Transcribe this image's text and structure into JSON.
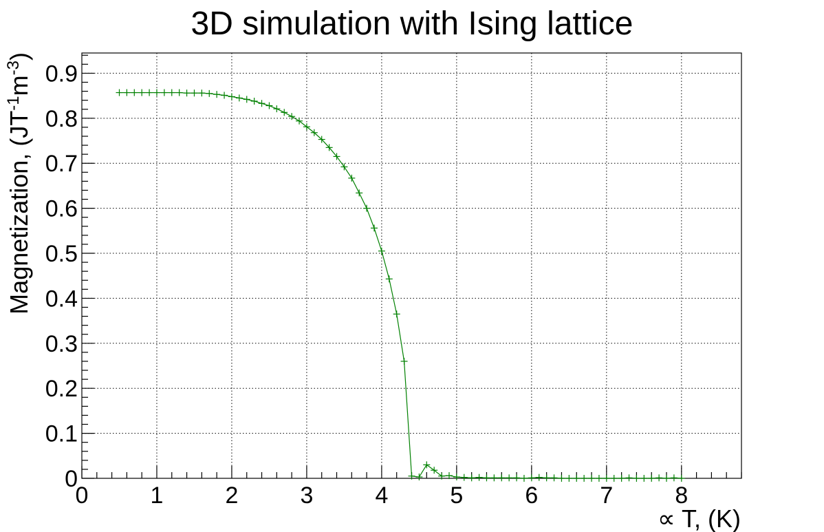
{
  "chart_data": {
    "type": "line",
    "title": "3D simulation with Ising lattice",
    "xlabel": "∝ T, (K)",
    "ylabel": {
      "main": "Magnetization, (JT",
      "sup1": "-1",
      "mid": "m",
      "sup2": "-3",
      "end": ")"
    },
    "xlim": [
      0,
      8.8
    ],
    "ylim": [
      0,
      0.945
    ],
    "xticks": [
      0,
      1,
      2,
      3,
      4,
      5,
      6,
      7,
      8
    ],
    "yticks": [
      0,
      0.1,
      0.2,
      0.3,
      0.4,
      0.5,
      0.6,
      0.7,
      0.8,
      0.9
    ],
    "xtick_labels": [
      "0",
      "1",
      "2",
      "3",
      "4",
      "5",
      "6",
      "7",
      "8"
    ],
    "ytick_labels": [
      "0",
      "0.1",
      "0.2",
      "0.3",
      "0.4",
      "0.5",
      "0.6",
      "0.7",
      "0.8",
      "0.9"
    ],
    "grid": true,
    "marker": "plus",
    "color": "#008000",
    "series": [
      {
        "x": [
          0.5,
          0.6,
          0.7,
          0.8,
          0.9,
          1.0,
          1.1,
          1.2,
          1.3,
          1.4,
          1.5,
          1.6,
          1.7,
          1.8,
          1.9,
          2.0,
          2.1,
          2.2,
          2.3,
          2.4,
          2.5,
          2.6,
          2.7,
          2.8,
          2.9,
          3.0,
          3.1,
          3.2,
          3.3,
          3.4,
          3.5,
          3.6,
          3.7,
          3.8,
          3.9,
          4.0,
          4.1,
          4.2,
          4.3,
          4.4,
          4.5,
          4.6,
          4.7,
          4.8,
          4.9,
          5.0,
          5.1,
          5.2,
          5.3,
          5.4,
          5.5,
          5.6,
          5.7,
          5.8,
          5.9,
          6.0,
          6.1,
          6.2,
          6.3,
          6.4,
          6.5,
          6.6,
          6.7,
          6.8,
          6.9,
          7.0,
          7.1,
          7.2,
          7.3,
          7.4,
          7.5,
          7.6,
          7.7,
          7.8,
          7.9,
          8.0
        ],
        "values": [
          0.857,
          0.857,
          0.857,
          0.857,
          0.857,
          0.857,
          0.857,
          0.857,
          0.857,
          0.856,
          0.856,
          0.856,
          0.855,
          0.853,
          0.851,
          0.848,
          0.845,
          0.842,
          0.838,
          0.833,
          0.828,
          0.821,
          0.813,
          0.804,
          0.794,
          0.781,
          0.768,
          0.753,
          0.735,
          0.715,
          0.692,
          0.667,
          0.634,
          0.6,
          0.556,
          0.505,
          0.443,
          0.365,
          0.26,
          0.005,
          0.003,
          0.03,
          0.018,
          0.005,
          0.006,
          0.003,
          0.002,
          0.001,
          0.002,
          0.001,
          0.001,
          0.001,
          0.001,
          0.001,
          0.0,
          0.001,
          0.002,
          0.001,
          0.001,
          0.0,
          0.0,
          0.0,
          0.0,
          0.0,
          0.0,
          0.0,
          0.0,
          0.0,
          0.001,
          0.0,
          0.0,
          0.0,
          0.001,
          0.0,
          0.001,
          0.0
        ]
      }
    ]
  }
}
